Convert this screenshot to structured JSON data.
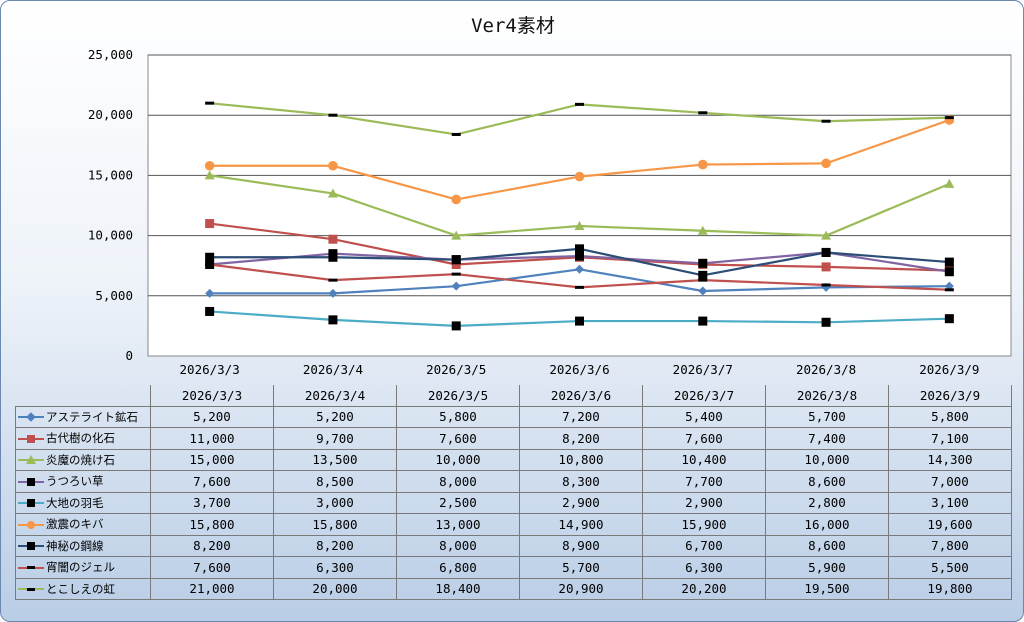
{
  "chart_data": {
    "type": "line",
    "title": "Ver4素材",
    "categories": [
      "2026/3/3",
      "2026/3/4",
      "2026/3/5",
      "2026/3/6",
      "2026/3/7",
      "2026/3/8",
      "2026/3/9"
    ],
    "ylim": [
      0,
      25000
    ],
    "yticks": [
      "0",
      "5,000",
      "10,000",
      "15,000",
      "20,000",
      "25,000"
    ],
    "grid": true,
    "legend": "data-table",
    "series": [
      {
        "name": "アステライト鉱石",
        "color": "#4f81bd",
        "marker": "diamond",
        "values": [
          5200,
          5200,
          5800,
          7200,
          5400,
          5700,
          5800
        ],
        "labels": [
          "5,200",
          "5,200",
          "5,800",
          "7,200",
          "5,400",
          "5,700",
          "5,800"
        ]
      },
      {
        "name": "古代樹の化石",
        "color": "#c0504d",
        "marker": "square",
        "values": [
          11000,
          9700,
          7600,
          8200,
          7600,
          7400,
          7100
        ],
        "labels": [
          "11,000",
          "9,700",
          "7,600",
          "8,200",
          "7,600",
          "7,400",
          "7,100"
        ]
      },
      {
        "name": "炎魔の焼け石",
        "color": "#9bbb59",
        "marker": "triangle",
        "values": [
          15000,
          13500,
          10000,
          10800,
          10400,
          10000,
          14300
        ],
        "labels": [
          "15,000",
          "13,500",
          "10,000",
          "10,800",
          "10,400",
          "10,000",
          "14,300"
        ]
      },
      {
        "name": "うつろい草",
        "color": "#8064a2",
        "marker": "blacksquare",
        "values": [
          7600,
          8500,
          8000,
          8300,
          7700,
          8600,
          7000
        ],
        "labels": [
          "7,600",
          "8,500",
          "8,000",
          "8,300",
          "7,700",
          "8,600",
          "7,000"
        ]
      },
      {
        "name": "大地の羽毛",
        "color": "#4bacc6",
        "marker": "blacksquare",
        "values": [
          3700,
          3000,
          2500,
          2900,
          2900,
          2800,
          3100
        ],
        "labels": [
          "3,700",
          "3,000",
          "2,500",
          "2,900",
          "2,900",
          "2,800",
          "3,100"
        ]
      },
      {
        "name": "激震のキバ",
        "color": "#f79646",
        "marker": "circle",
        "values": [
          15800,
          15800,
          13000,
          14900,
          15900,
          16000,
          19600
        ],
        "labels": [
          "15,800",
          "15,800",
          "13,000",
          "14,900",
          "15,900",
          "16,000",
          "19,600"
        ]
      },
      {
        "name": "神秘の鋼線",
        "color": "#2c4d75",
        "marker": "blacksquare",
        "values": [
          8200,
          8200,
          8000,
          8900,
          6700,
          8600,
          7800
        ],
        "labels": [
          "8,200",
          "8,200",
          "8,000",
          "8,900",
          "6,700",
          "8,600",
          "7,800"
        ]
      },
      {
        "name": "宵闇のジェル",
        "color": "#c0504d",
        "marker": "dash",
        "values": [
          7600,
          6300,
          6800,
          5700,
          6300,
          5900,
          5500
        ],
        "labels": [
          "7,600",
          "6,300",
          "6,800",
          "5,700",
          "6,300",
          "5,900",
          "5,500"
        ]
      },
      {
        "name": "とこしえの虹",
        "color": "#9bbb59",
        "marker": "dash",
        "values": [
          21000,
          20000,
          18400,
          20900,
          20200,
          19500,
          19800
        ],
        "labels": [
          "21,000",
          "20,000",
          "18,400",
          "20,900",
          "20,200",
          "19,500",
          "19,800"
        ]
      }
    ]
  }
}
